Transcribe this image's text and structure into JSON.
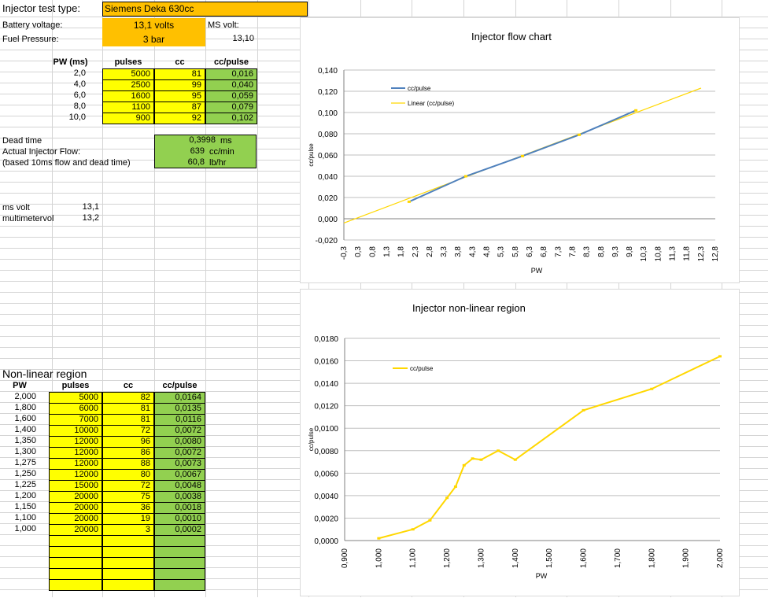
{
  "header": {
    "test_type_label": "Injector test type:",
    "test_type_value": "Siemens Deka 630cc",
    "battery_label": "Battery voltage:",
    "battery_value": "13,1 volts",
    "ms_volt_label": "MS volt:",
    "ms_volt_value": "13,10",
    "fuel_label": "Fuel Pressure:",
    "fuel_value": "3 bar"
  },
  "table1": {
    "headers": [
      "PW (ms)",
      "pulses",
      "cc",
      "cc/pulse"
    ],
    "rows": [
      [
        "2,0",
        "5000",
        "81",
        "0,016"
      ],
      [
        "4,0",
        "2500",
        "99",
        "0,040"
      ],
      [
        "6,0",
        "1600",
        "95",
        "0,059"
      ],
      [
        "8,0",
        "1100",
        "87",
        "0,079"
      ],
      [
        "10,0",
        "900",
        "92",
        "0,102"
      ]
    ]
  },
  "results": {
    "dead_time_label": "Dead time",
    "dead_time_value": "0,3998",
    "dead_time_unit": "ms",
    "flow_label": "Actual Injector Flow:",
    "flow_value": "639",
    "flow_unit": "cc/min",
    "based_label": "(based 10ms flow and dead time)",
    "lbhr_value": "60,8",
    "lbhr_unit": "lb/hr"
  },
  "volts": {
    "ms_label": "ms volt",
    "ms_value": "13,1",
    "mm_label": "multimetervol",
    "mm_value": "13,2"
  },
  "table2": {
    "title": "Non-linear region",
    "headers": [
      "PW",
      "pulses",
      "cc",
      "cc/pulse"
    ],
    "rows": [
      [
        "2,000",
        "5000",
        "82",
        "0,0164"
      ],
      [
        "1,800",
        "6000",
        "81",
        "0,0135"
      ],
      [
        "1,600",
        "7000",
        "81",
        "0,0116"
      ],
      [
        "1,400",
        "10000",
        "72",
        "0,0072"
      ],
      [
        "1,350",
        "12000",
        "96",
        "0,0080"
      ],
      [
        "1,300",
        "12000",
        "86",
        "0,0072"
      ],
      [
        "1,275",
        "12000",
        "88",
        "0,0073"
      ],
      [
        "1,250",
        "12000",
        "80",
        "0,0067"
      ],
      [
        "1,225",
        "15000",
        "72",
        "0,0048"
      ],
      [
        "1,200",
        "20000",
        "75",
        "0,0038"
      ],
      [
        "1,150",
        "20000",
        "36",
        "0,0018"
      ],
      [
        "1,100",
        "20000",
        "19",
        "0,0010"
      ],
      [
        "1,000",
        "20000",
        "3",
        "0,0002"
      ]
    ]
  },
  "chart1": {
    "title": "Injector flow chart",
    "ylabel": "cc/pulse",
    "xlabel": "PW",
    "legend": [
      "cc/pulse",
      "Linear (cc/pulse)"
    ],
    "y_ticks": [
      "0,140",
      "0,120",
      "0,100",
      "0,080",
      "0,060",
      "0,040",
      "0,020",
      "0,000",
      "-0,020"
    ],
    "x_ticks": [
      "-0,3",
      "0,3",
      "0,8",
      "1,3",
      "1,8",
      "2,3",
      "2,8",
      "3,3",
      "3,8",
      "4,3",
      "4,8",
      "5,3",
      "5,8",
      "6,3",
      "6,8",
      "7,3",
      "7,8",
      "8,3",
      "8,8",
      "9,3",
      "9,8",
      "10,3",
      "10,8",
      "11,3",
      "11,8",
      "12,3",
      "12,8"
    ],
    "colors": {
      "series": "#4f81bd",
      "trend": "#ffd700"
    }
  },
  "chart2": {
    "title": "Injector non-linear region",
    "ylabel": "cc/pulse",
    "xlabel": "PW",
    "legend": [
      "cc/pulse"
    ],
    "y_ticks": [
      "0,0180",
      "0,0160",
      "0,0140",
      "0,0120",
      "0,0100",
      "0,0080",
      "0,0060",
      "0,0040",
      "0,0020",
      "0,0000"
    ],
    "x_ticks": [
      "0,900",
      "1,000",
      "1,100",
      "1,200",
      "1,300",
      "1,400",
      "1,500",
      "1,600",
      "1,700",
      "1,800",
      "1,900",
      "2,000"
    ],
    "colors": {
      "series": "#ffd700"
    }
  },
  "chart_data": [
    {
      "type": "line",
      "title": "Injector flow chart",
      "xlabel": "PW",
      "ylabel": "cc/pulse",
      "ylim": [
        -0.02,
        0.14
      ],
      "xlim": [
        -0.3,
        12.8
      ],
      "series": [
        {
          "name": "cc/pulse",
          "x": [
            2,
            4,
            6,
            8,
            10
          ],
          "values": [
            0.016,
            0.04,
            0.059,
            0.079,
            0.102
          ]
        },
        {
          "name": "Linear (cc/pulse)",
          "x": [
            -0.3,
            12.3
          ],
          "values": [
            -0.004,
            0.123
          ]
        }
      ],
      "legend": "top-left",
      "grid": true
    },
    {
      "type": "line",
      "title": "Injector non-linear region",
      "xlabel": "PW",
      "ylabel": "cc/pulse",
      "ylim": [
        0,
        0.018
      ],
      "xlim": [
        0.9,
        2.0
      ],
      "series": [
        {
          "name": "cc/pulse",
          "x": [
            1.0,
            1.1,
            1.15,
            1.2,
            1.225,
            1.25,
            1.275,
            1.3,
            1.35,
            1.4,
            1.6,
            1.8,
            2.0
          ],
          "values": [
            0.0002,
            0.001,
            0.0018,
            0.0038,
            0.0048,
            0.0067,
            0.0073,
            0.0072,
            0.008,
            0.0072,
            0.0116,
            0.0135,
            0.0164
          ]
        }
      ],
      "legend": "top-left",
      "grid": true
    }
  ]
}
